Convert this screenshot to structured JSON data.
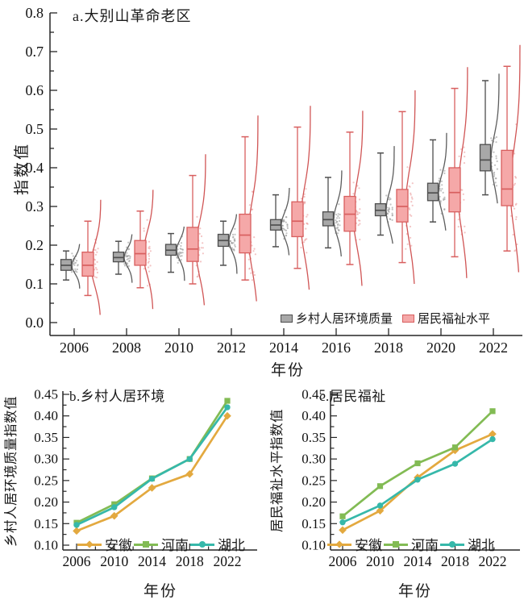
{
  "figure": {
    "panels": {
      "a": {
        "title": "a.大别山革命老区",
        "xlabel": "年份",
        "ylabel": "指数值"
      },
      "b": {
        "title": "b.乡村人居环境",
        "xlabel": "年份",
        "ylabel": "乡村人居环境质量指数值"
      },
      "c": {
        "title": "c.居民福祉",
        "xlabel": "年份",
        "ylabel": "居民福祉水平指数值"
      }
    },
    "colors": {
      "gray_fill": "#a8a8a8",
      "gray_edge": "#4f4f4f",
      "red_fill": "#f5a8a8",
      "red_edge": "#d85f5f",
      "anhui_orange": "#E3A93F",
      "henan_green": "#82BB54",
      "hubei_teal": "#36B8AA",
      "axis": "#262626"
    }
  },
  "chart_data": [
    {
      "panel": "a",
      "type": "box",
      "title": "a.大别山革命老区",
      "xlabel": "年份",
      "ylabel": "指数值",
      "ylim": [
        0.0,
        0.8
      ],
      "ytick_step": 0.1,
      "ytick_minor_step": 0.05,
      "legend_position": "inside-bottom-right",
      "categories": [
        2006,
        2008,
        2010,
        2012,
        2014,
        2016,
        2018,
        2020,
        2022
      ],
      "series": [
        {
          "name": "乡村人居环境质量",
          "fill": "#a8a8a8",
          "edge": "#4f4f4f",
          "boxes_note": "each box = [whisker_low, q1, median, q3, whisker_high]",
          "boxes": [
            [
              0.11,
              0.135,
              0.148,
              0.163,
              0.185
            ],
            [
              0.125,
              0.157,
              0.168,
              0.182,
              0.21
            ],
            [
              0.13,
              0.174,
              0.187,
              0.202,
              0.23
            ],
            [
              0.148,
              0.197,
              0.212,
              0.228,
              0.262
            ],
            [
              0.196,
              0.239,
              0.252,
              0.266,
              0.33
            ],
            [
              0.193,
              0.25,
              0.266,
              0.286,
              0.375
            ],
            [
              0.226,
              0.276,
              0.29,
              0.307,
              0.438
            ],
            [
              0.26,
              0.315,
              0.335,
              0.36,
              0.472
            ],
            [
              0.33,
              0.392,
              0.42,
              0.46,
              0.625
            ]
          ]
        },
        {
          "name": "居民福祉水平",
          "fill": "#f5a8a8",
          "edge": "#d85f5f",
          "boxes": [
            [
              0.07,
              0.12,
              0.148,
              0.182,
              0.262
            ],
            [
              0.09,
              0.148,
              0.178,
              0.212,
              0.288
            ],
            [
              0.1,
              0.158,
              0.19,
              0.246,
              0.38
            ],
            [
              0.11,
              0.18,
              0.226,
              0.28,
              0.48
            ],
            [
              0.14,
              0.222,
              0.262,
              0.312,
              0.505
            ],
            [
              0.15,
              0.236,
              0.28,
              0.326,
              0.492
            ],
            [
              0.155,
              0.26,
              0.3,
              0.344,
              0.545
            ],
            [
              0.17,
              0.286,
              0.336,
              0.4,
              0.605
            ],
            [
              0.185,
              0.302,
              0.345,
              0.445,
              0.662
            ]
          ]
        }
      ]
    },
    {
      "panel": "b",
      "type": "line",
      "title": "b.乡村人居环境",
      "xlabel": "年份",
      "ylabel": "乡村人居环境质量指数值",
      "ylim": [
        0.1,
        0.45
      ],
      "ytick_step": 0.05,
      "legend_position": "inside-bottom",
      "x": [
        2006,
        2010,
        2014,
        2018,
        2022
      ],
      "series": [
        {
          "name": "安徽",
          "color": "#E3A93F",
          "marker": "diamond",
          "values": [
            0.133,
            0.168,
            0.233,
            0.265,
            0.4
          ]
        },
        {
          "name": "河南",
          "color": "#82BB54",
          "marker": "square",
          "values": [
            0.152,
            0.195,
            0.255,
            0.3,
            0.435
          ]
        },
        {
          "name": "湖北",
          "color": "#36B8AA",
          "marker": "circle",
          "values": [
            0.147,
            0.188,
            0.254,
            0.3,
            0.42
          ]
        }
      ]
    },
    {
      "panel": "c",
      "type": "line",
      "title": "c.居民福祉",
      "xlabel": "年份",
      "ylabel": "居民福祉水平指数值",
      "ylim": [
        0.1,
        0.45
      ],
      "ytick_step": 0.05,
      "legend_position": "inside-bottom",
      "x": [
        2006,
        2010,
        2014,
        2018,
        2022
      ],
      "series": [
        {
          "name": "安徽",
          "color": "#E3A93F",
          "marker": "diamond",
          "values": [
            0.135,
            0.18,
            0.257,
            0.32,
            0.358
          ]
        },
        {
          "name": "河南",
          "color": "#82BB54",
          "marker": "square",
          "values": [
            0.167,
            0.237,
            0.29,
            0.327,
            0.411
          ]
        },
        {
          "name": "湖北",
          "color": "#36B8AA",
          "marker": "circle",
          "values": [
            0.153,
            0.192,
            0.252,
            0.289,
            0.346
          ]
        }
      ]
    }
  ]
}
